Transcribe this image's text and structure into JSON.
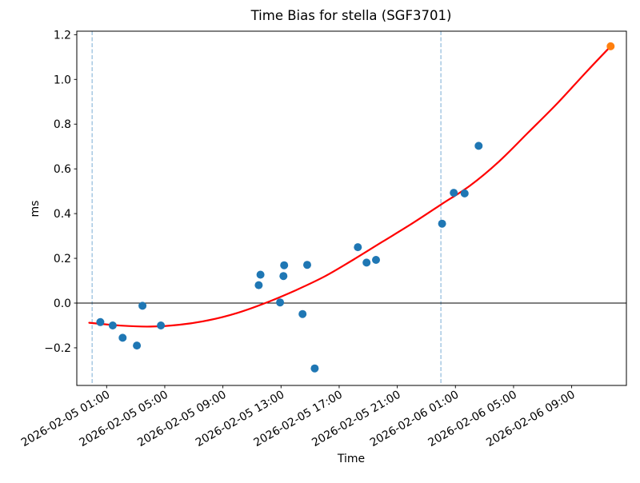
{
  "figure": {
    "title": "Time Bias for stella (SGF3701)",
    "xlabel": "Time",
    "ylabel": "ms"
  },
  "chart_data": {
    "type": "scatter",
    "title": "Time Bias for stella (SGF3701)",
    "xlabel": "Time",
    "ylabel": "ms",
    "grid": false,
    "legend": "none",
    "xlim": [
      "2026-02-04 22:57",
      "2026-02-06 12:46"
    ],
    "ylim": [
      -0.37,
      1.21
    ],
    "x_tick_labels": [
      "2026-02-05 01:00",
      "2026-02-05 05:00",
      "2026-02-05 09:00",
      "2026-02-05 13:00",
      "2026-02-05 17:00",
      "2026-02-05 21:00",
      "2026-02-06 01:00",
      "2026-02-06 05:00",
      "2026-02-06 09:00"
    ],
    "y_ticks": [
      -0.2,
      0.0,
      0.2,
      0.4,
      0.6,
      0.8,
      1.0,
      1.2
    ],
    "y_tick_labels": [
      "−0.2",
      "0.0",
      "0.2",
      "0.4",
      "0.6",
      "0.8",
      "1.0",
      "1.2"
    ],
    "hline_y": 0.0,
    "vlines": [
      "2026-02-05 00:00",
      "2026-02-06 00:00"
    ],
    "colors": {
      "observations": "#1f77b4",
      "latest_point": "#ff7f0e",
      "fit_curve": "#ff0000",
      "day_boundary": "#7aadd4",
      "zero_line": "#000000"
    },
    "series": [
      {
        "name": "observations",
        "type": "scatter",
        "color": "#1f77b4",
        "points": [
          {
            "time": "2026-02-05 00:34",
            "ms": -0.085
          },
          {
            "time": "2026-02-05 01:25",
            "ms": -0.1
          },
          {
            "time": "2026-02-05 02:06",
            "ms": -0.155
          },
          {
            "time": "2026-02-05 03:05",
            "ms": -0.19
          },
          {
            "time": "2026-02-05 03:28",
            "ms": -0.012
          },
          {
            "time": "2026-02-05 04:44",
            "ms": -0.1
          },
          {
            "time": "2026-02-05 11:28",
            "ms": 0.08
          },
          {
            "time": "2026-02-05 11:35",
            "ms": 0.127
          },
          {
            "time": "2026-02-05 12:56",
            "ms": 0.003
          },
          {
            "time": "2026-02-05 13:10",
            "ms": 0.121
          },
          {
            "time": "2026-02-05 13:13",
            "ms": 0.169
          },
          {
            "time": "2026-02-05 14:29",
            "ms": -0.049
          },
          {
            "time": "2026-02-05 14:48",
            "ms": 0.171
          },
          {
            "time": "2026-02-05 15:19",
            "ms": -0.292
          },
          {
            "time": "2026-02-05 18:17",
            "ms": 0.25
          },
          {
            "time": "2026-02-05 18:53",
            "ms": 0.181
          },
          {
            "time": "2026-02-05 19:32",
            "ms": 0.193
          },
          {
            "time": "2026-02-06 00:05",
            "ms": 0.355
          },
          {
            "time": "2026-02-06 00:53",
            "ms": 0.493
          },
          {
            "time": "2026-02-06 01:38",
            "ms": 0.49
          },
          {
            "time": "2026-02-06 02:36",
            "ms": 0.703
          }
        ]
      },
      {
        "name": "latest",
        "type": "scatter",
        "color": "#ff7f0e",
        "points": [
          {
            "time": "2026-02-06 11:41",
            "ms": 1.148
          }
        ]
      },
      {
        "name": "fit",
        "type": "line",
        "color": "#ff0000",
        "points": [
          {
            "time": "2026-02-04 23:48",
            "ms": -0.088
          },
          {
            "time": "2026-02-05 02:00",
            "ms": -0.101
          },
          {
            "time": "2026-02-05 04:00",
            "ms": -0.105
          },
          {
            "time": "2026-02-05 06:00",
            "ms": -0.097
          },
          {
            "time": "2026-02-05 08:00",
            "ms": -0.077
          },
          {
            "time": "2026-02-05 10:00",
            "ms": -0.044
          },
          {
            "time": "2026-02-05 12:00",
            "ms": 0.002
          },
          {
            "time": "2026-02-05 14:00",
            "ms": 0.057
          },
          {
            "time": "2026-02-05 16:00",
            "ms": 0.119
          },
          {
            "time": "2026-02-05 18:00",
            "ms": 0.195
          },
          {
            "time": "2026-02-05 20:00",
            "ms": 0.275
          },
          {
            "time": "2026-02-05 22:00",
            "ms": 0.355
          },
          {
            "time": "2026-02-06 00:00",
            "ms": 0.44
          },
          {
            "time": "2026-02-06 02:00",
            "ms": 0.525
          },
          {
            "time": "2026-02-06 04:00",
            "ms": 0.633
          },
          {
            "time": "2026-02-06 06:00",
            "ms": 0.762
          },
          {
            "time": "2026-02-06 08:00",
            "ms": 0.892
          },
          {
            "time": "2026-02-06 10:00",
            "ms": 1.033
          },
          {
            "time": "2026-02-06 11:41",
            "ms": 1.148
          }
        ]
      }
    ]
  }
}
